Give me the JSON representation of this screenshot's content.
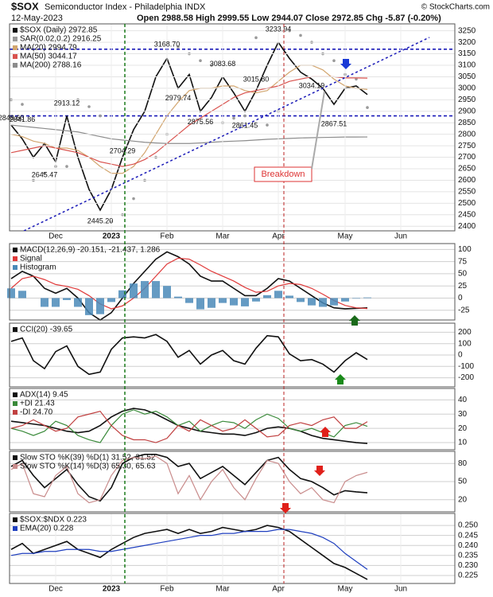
{
  "header": {
    "symbol": "$SOX",
    "title": "Semiconductor Index - Philadelphia INDX",
    "date": "12-May-2023",
    "quote": "Open 2988.58 High 2999.55 Low 2944.07 Close 2972.85 Chg -5.87 (-0.20%)",
    "credit": "© StockCharts.com"
  },
  "chart_data": [
    {
      "type": "line",
      "grid": true,
      "categories": [
        null,
        null,
        null,
        null,
        "Dec",
        null,
        null,
        null,
        null,
        "2023",
        null,
        null,
        null,
        null,
        "Feb",
        null,
        null,
        null,
        null,
        "Mar",
        null,
        null,
        null,
        null,
        "Apr",
        null,
        null,
        null,
        null,
        null,
        "May",
        null,
        null,
        null,
        null,
        "Jun",
        null,
        null,
        null,
        null
      ],
      "ylim": [
        2380,
        3280
      ],
      "yticks": [
        2400,
        2450,
        2500,
        2550,
        2600,
        2650,
        2700,
        2750,
        2800,
        2850,
        2900,
        2950,
        3000,
        3050,
        3100,
        3150,
        3200,
        3250
      ],
      "series": [
        {
          "name": "$SOX (Daily) 2972.85",
          "color": "#111111",
          "kind": "line",
          "values": [
            2840,
            2780,
            2700,
            2760,
            2680,
            2880,
            2700,
            2560,
            2470,
            2560,
            2700,
            2820,
            2900,
            3050,
            3130,
            3000,
            3060,
            2900,
            2960,
            3050,
            2980,
            2900,
            2990,
            3100,
            3200,
            3130,
            3070,
            3040,
            3000,
            2930,
            3000,
            3010,
            2972.85,
            null,
            null,
            null,
            null,
            null,
            null,
            null
          ]
        },
        {
          "name": "SAR(0.02,0.2) 2916.25",
          "color": "#9a9a9a",
          "kind": "dots",
          "values": [
            2950,
            2930,
            2600,
            2630,
            2660,
            2660,
            2950,
            2920,
            2880,
            2420,
            2450,
            2520,
            2600,
            2700,
            2800,
            3180,
            3150,
            3120,
            3100,
            2850,
            2870,
            2880,
            3220,
            2840,
            2900,
            3250,
            3230,
            3200,
            3150,
            3120,
            3060,
            3040,
            2916.25,
            null,
            null,
            null,
            null,
            null,
            null,
            null
          ]
        },
        {
          "name": "MA(20) 2994.79",
          "color": "#d2a56e",
          "kind": "line",
          "values": [
            2800,
            2790,
            2770,
            2760,
            2740,
            2740,
            2730,
            2700,
            2660,
            2630,
            2630,
            2660,
            2720,
            2800,
            2880,
            2940,
            2990,
            3000,
            3000,
            3010,
            3010,
            2990,
            2980,
            2990,
            3030,
            3070,
            3100,
            3100,
            3080,
            3040,
            3010,
            3000,
            2994.79,
            null,
            null,
            null,
            null,
            null,
            null,
            null
          ]
        },
        {
          "name": "MA(50) 3044.17",
          "color": "#d9534f",
          "kind": "line",
          "values": [
            2720,
            2730,
            2740,
            2750,
            2740,
            2730,
            2720,
            2700,
            2680,
            2670,
            2660,
            2670,
            2690,
            2720,
            2760,
            2800,
            2840,
            2870,
            2900,
            2930,
            2960,
            2980,
            2990,
            3000,
            3010,
            3030,
            3040,
            3050,
            3050,
            3050,
            3045,
            3045,
            3044.17,
            null,
            null,
            null,
            null,
            null,
            null,
            null
          ]
        },
        {
          "name": "MA(200) 2788.16",
          "color": "#8c8c8c",
          "kind": "line",
          "values": [
            2840,
            2835,
            2830,
            2825,
            2820,
            2815,
            2810,
            2800,
            2790,
            2780,
            2775,
            2770,
            2765,
            2762,
            2760,
            2760,
            2760,
            2762,
            2765,
            2768,
            2770,
            2772,
            2775,
            2778,
            2780,
            2782,
            2784,
            2785,
            2786,
            2787,
            2788,
            2788,
            2788.16,
            null,
            null,
            null,
            null,
            null,
            null,
            null
          ]
        }
      ],
      "pivots": {
        "values": [
          2848.6,
          2841.86,
          null,
          2645.47,
          null,
          2913.12,
          null,
          null,
          2445.2,
          null,
          2704.29,
          null,
          null,
          null,
          3168.7,
          2979.74,
          null,
          2875.56,
          null,
          3083.68,
          null,
          2861.45,
          3015.8,
          null,
          3233.94,
          null,
          null,
          3034.19,
          null,
          2867.51,
          null,
          null,
          null,
          null,
          null,
          null,
          null,
          null,
          null,
          null
        ],
        "value_labels": [
          "2848.60",
          "2841.86",
          null,
          "2645.47",
          null,
          "2913.12",
          null,
          null,
          "2445.20",
          null,
          "2704.29",
          null,
          null,
          null,
          "3168.70",
          "2979.74",
          null,
          "2875.56",
          null,
          "3083.68",
          null,
          "2861.45",
          "3015.80",
          null,
          "3233.94",
          null,
          null,
          "3034.19",
          null,
          "2867.51",
          null,
          null,
          null,
          null,
          null,
          null,
          null,
          null,
          null,
          null
        ]
      },
      "levels": [
        3170,
        2880
      ],
      "annotations": [
        "Breakdown"
      ]
    },
    {
      "type": "line",
      "grid": true,
      "ylim": [
        -45,
        112
      ],
      "yticks": [
        -25,
        0,
        25,
        50,
        75,
        100
      ],
      "series": [
        {
          "name": "MACD(12,26,9) -20.151, -21.437, 1.286",
          "color": "#111111",
          "kind": "line",
          "values": [
            40,
            55,
            45,
            20,
            10,
            20,
            0,
            -30,
            -45,
            -30,
            0,
            30,
            55,
            80,
            95,
            85,
            70,
            45,
            35,
            35,
            20,
            5,
            5,
            20,
            40,
            35,
            20,
            5,
            -10,
            -20,
            -22,
            -21,
            -20.151,
            null,
            null,
            null,
            null,
            null,
            null,
            null
          ]
        },
        {
          "name": "Signal",
          "color": "#e03a3a",
          "kind": "line",
          "values": [
            20,
            40,
            45,
            38,
            28,
            24,
            18,
            5,
            -12,
            -22,
            -16,
            0,
            20,
            45,
            70,
            82,
            80,
            68,
            55,
            45,
            35,
            22,
            12,
            14,
            25,
            30,
            28,
            20,
            8,
            -5,
            -15,
            -20,
            -21.437,
            null,
            null,
            null,
            null,
            null,
            null,
            null
          ]
        },
        {
          "name": "Histogram",
          "color": "#4a8ab8",
          "kind": "bar",
          "values": [
            20,
            15,
            0,
            -18,
            -18,
            -4,
            -18,
            -35,
            -33,
            -8,
            16,
            30,
            35,
            35,
            25,
            3,
            -10,
            -23,
            -20,
            -10,
            -15,
            -17,
            -7,
            6,
            15,
            5,
            -8,
            -15,
            -18,
            -15,
            -7,
            -1,
            1.286,
            null,
            null,
            null,
            null,
            null,
            null,
            null
          ]
        }
      ]
    },
    {
      "type": "line",
      "grid": true,
      "ylim": [
        -280,
        280
      ],
      "yticks": [
        -200,
        -100,
        0,
        100,
        200
      ],
      "series": [
        {
          "name": "CCI(20) -39.65",
          "color": "#111111",
          "kind": "line",
          "values": [
            120,
            150,
            -50,
            -120,
            30,
            80,
            -100,
            -170,
            -150,
            50,
            150,
            160,
            150,
            180,
            120,
            -20,
            40,
            -80,
            0,
            40,
            -50,
            -80,
            60,
            170,
            160,
            10,
            -50,
            -40,
            -80,
            -150,
            -50,
            20,
            -39.65,
            null,
            null,
            null,
            null,
            null,
            null,
            null
          ]
        }
      ]
    },
    {
      "type": "line",
      "grid": true,
      "ylim": [
        5,
        48
      ],
      "yticks": [
        10,
        20,
        30,
        40
      ],
      "series": [
        {
          "name": "ADX(14) 9.45",
          "color": "#111111",
          "kind": "line",
          "values": [
            25,
            24,
            23,
            22,
            20,
            18,
            17,
            18,
            22,
            28,
            32,
            34,
            33,
            30,
            26,
            22,
            20,
            18,
            17,
            16,
            16,
            15,
            17,
            20,
            21,
            20,
            18,
            15,
            13,
            12,
            11,
            10,
            9.45,
            null,
            null,
            null,
            null,
            null,
            null,
            null
          ]
        },
        {
          "name": "+DI 21.43",
          "color": "#3a8a3a",
          "kind": "line",
          "values": [
            20,
            18,
            15,
            18,
            25,
            22,
            15,
            12,
            10,
            22,
            30,
            33,
            30,
            32,
            28,
            22,
            25,
            18,
            22,
            25,
            24,
            20,
            26,
            30,
            27,
            20,
            18,
            20,
            17,
            14,
            22,
            24,
            21.43,
            null,
            null,
            null,
            null,
            null,
            null,
            null
          ]
        },
        {
          "name": "-DI 24.70",
          "color": "#c04040",
          "kind": "line",
          "values": [
            20,
            22,
            26,
            22,
            18,
            20,
            28,
            30,
            32,
            22,
            15,
            12,
            12,
            10,
            13,
            22,
            18,
            26,
            22,
            18,
            20,
            26,
            20,
            14,
            15,
            22,
            24,
            22,
            26,
            28,
            20,
            20,
            24.7,
            null,
            null,
            null,
            null,
            null,
            null,
            null
          ]
        }
      ]
    },
    {
      "type": "line",
      "grid": true,
      "ylim": [
        0,
        100
      ],
      "yticks": [
        20,
        50,
        80
      ],
      "series": [
        {
          "name": "Slow STO %K(39) %D(1) 31.52, 31.52",
          "color": "#111111",
          "kind": "line",
          "values": [
            75,
            85,
            60,
            40,
            55,
            70,
            45,
            25,
            18,
            40,
            80,
            90,
            95,
            95,
            90,
            75,
            80,
            55,
            65,
            75,
            60,
            45,
            65,
            85,
            90,
            70,
            55,
            50,
            40,
            28,
            35,
            33,
            31.52,
            null,
            null,
            null,
            null,
            null,
            null,
            null
          ]
        },
        {
          "name": "Slow STO %K(14) %D(3) 65.30, 65.63",
          "color": "#c98c8c",
          "kind": "line",
          "values": [
            70,
            80,
            30,
            25,
            60,
            75,
            30,
            15,
            20,
            60,
            85,
            90,
            88,
            92,
            80,
            30,
            60,
            20,
            50,
            70,
            40,
            20,
            55,
            85,
            80,
            50,
            30,
            40,
            20,
            15,
            50,
            60,
            65.3,
            null,
            null,
            null,
            null,
            null,
            null,
            null
          ]
        }
      ]
    },
    {
      "type": "line",
      "grid": true,
      "categories": [
        null,
        null,
        null,
        null,
        "Dec",
        null,
        null,
        null,
        null,
        "2023",
        null,
        null,
        null,
        null,
        "Feb",
        null,
        null,
        null,
        null,
        "Mar",
        null,
        null,
        null,
        null,
        "Apr",
        null,
        null,
        null,
        null,
        null,
        "May",
        null,
        null,
        null,
        null,
        "Jun",
        null,
        null,
        null,
        null
      ],
      "ylim": [
        0.221,
        0.256
      ],
      "yticks": [
        0.225,
        {
          "value": 0.23,
          "label": "0.230"
        },
        0.235,
        {
          "value": 0.24,
          "label": "0.240"
        },
        0.245,
        {
          "value": 0.25,
          "label": "0.250"
        }
      ],
      "series": [
        {
          "name": "$SOX:$NDX 0.223",
          "color": "#111111",
          "kind": "line",
          "values": [
            0.238,
            0.241,
            0.236,
            0.238,
            0.24,
            0.242,
            0.238,
            0.236,
            0.234,
            0.238,
            0.241,
            0.244,
            0.246,
            0.247,
            0.248,
            0.246,
            0.248,
            0.246,
            0.247,
            0.249,
            0.248,
            0.247,
            0.248,
            0.25,
            0.249,
            0.247,
            0.243,
            0.239,
            0.235,
            0.231,
            0.229,
            0.226,
            0.223,
            null,
            null,
            null,
            null,
            null,
            null,
            null
          ]
        },
        {
          "name": "EMA(20) 0.228",
          "color": "#1f3fbf",
          "kind": "line",
          "values": [
            0.235,
            0.236,
            0.236,
            0.237,
            0.237,
            0.238,
            0.238,
            0.238,
            0.237,
            0.237,
            0.238,
            0.239,
            0.24,
            0.241,
            0.242,
            0.243,
            0.244,
            0.245,
            0.245,
            0.246,
            0.246,
            0.247,
            0.247,
            0.247,
            0.248,
            0.248,
            0.247,
            0.246,
            0.244,
            0.241,
            0.236,
            0.232,
            0.228,
            null,
            null,
            null,
            null,
            null,
            null,
            null
          ]
        }
      ]
    }
  ]
}
